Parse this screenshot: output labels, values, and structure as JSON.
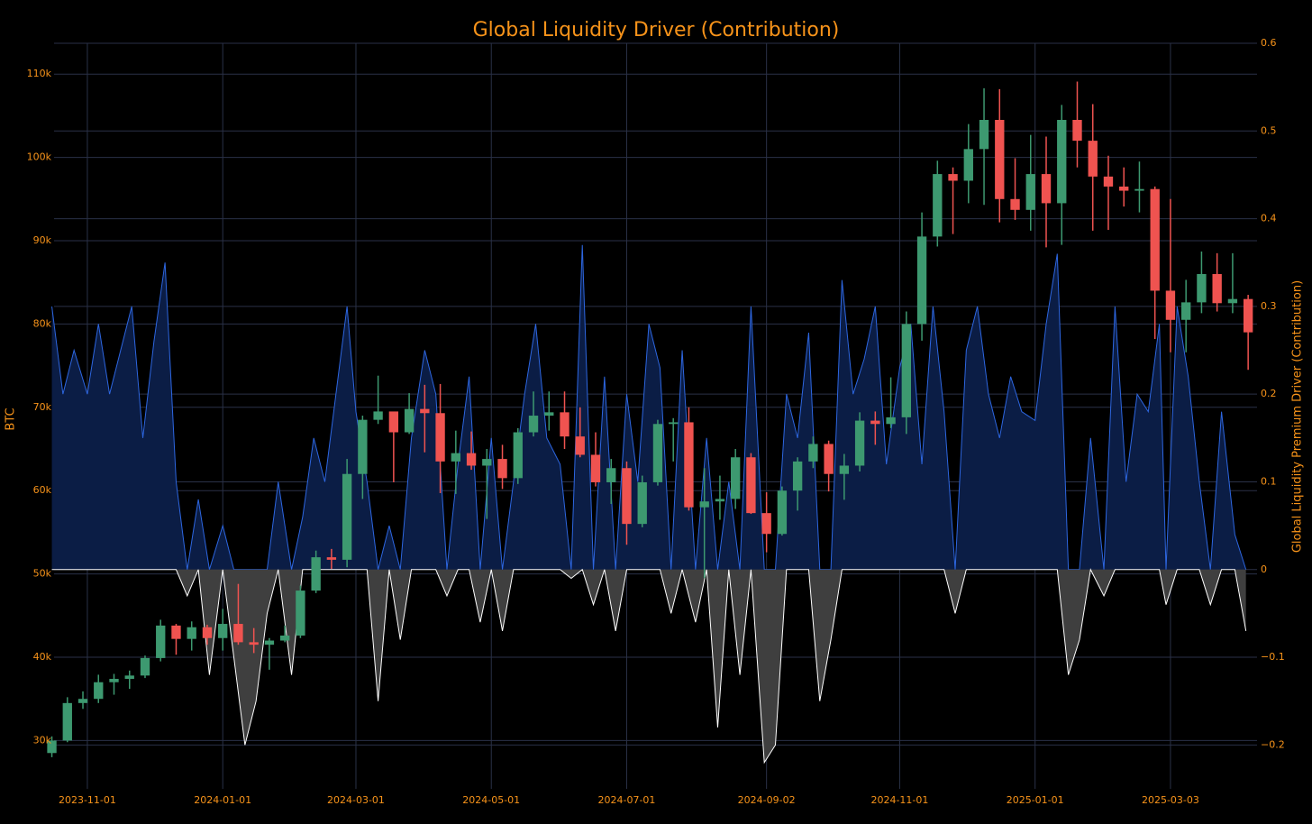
{
  "chart_data": {
    "type": "candlestick",
    "title": "Global Liquidity Driver (Contribution)",
    "y_label": "BTC",
    "y2_label": "Global Liquidity Premium Driver (Contribution)",
    "increasing_color": "#3d9970",
    "decreasing_color": "#ef5350",
    "grid": true,
    "xlim": [
      "2023-10-17",
      "2025-04-11"
    ],
    "xticks": [
      "2023-11-01",
      "2024-01-01",
      "2024-03-01",
      "2024-05-01",
      "2024-07-01",
      "2024-09-02",
      "2024-11-01",
      "2025-01-01",
      "2025-03-03"
    ],
    "ylim": [
      24200,
      113700
    ],
    "yticks": [
      {
        "value": 30000,
        "label": "30k"
      },
      {
        "value": 40000,
        "label": "40k"
      },
      {
        "value": 50000,
        "label": "50k"
      },
      {
        "value": 60000,
        "label": "60k"
      },
      {
        "value": 70000,
        "label": "70k"
      },
      {
        "value": 80000,
        "label": "80k"
      },
      {
        "value": 90000,
        "label": "90k"
      },
      {
        "value": 100000,
        "label": "100k"
      },
      {
        "value": 110000,
        "label": "110k"
      }
    ],
    "y2lim": [
      -0.25,
      0.6
    ],
    "y2ticks": [
      {
        "value": -0.2,
        "label": "−0.2"
      },
      {
        "value": -0.1,
        "label": "−0.1"
      },
      0,
      0.1,
      0.2,
      0.3,
      0.4,
      0.5,
      0.6
    ],
    "x": [
      "2023-10-16",
      "2023-10-23",
      "2023-10-30",
      "2023-11-06",
      "2023-11-13",
      "2023-11-20",
      "2023-11-27",
      "2023-12-04",
      "2023-12-11",
      "2023-12-18",
      "2023-12-25",
      "2024-01-01",
      "2024-01-08",
      "2024-01-15",
      "2024-01-22",
      "2024-01-29",
      "2024-02-05",
      "2024-02-12",
      "2024-02-19",
      "2024-02-26",
      "2024-03-04",
      "2024-03-11",
      "2024-03-18",
      "2024-03-25",
      "2024-04-01",
      "2024-04-08",
      "2024-04-15",
      "2024-04-22",
      "2024-04-29",
      "2024-05-06",
      "2024-05-13",
      "2024-05-20",
      "2024-05-27",
      "2024-06-03",
      "2024-06-10",
      "2024-06-17",
      "2024-06-24",
      "2024-07-01",
      "2024-07-08",
      "2024-07-15",
      "2024-07-22",
      "2024-07-29",
      "2024-08-05",
      "2024-08-12",
      "2024-08-19",
      "2024-08-26",
      "2024-09-02",
      "2024-09-09",
      "2024-09-16",
      "2024-09-23",
      "2024-09-30",
      "2024-10-07",
      "2024-10-14",
      "2024-10-21",
      "2024-10-28",
      "2024-11-04",
      "2024-11-11",
      "2024-11-18",
      "2024-11-25",
      "2024-12-02",
      "2024-12-09",
      "2024-12-16",
      "2024-12-23",
      "2024-12-30",
      "2025-01-06",
      "2025-01-13",
      "2025-01-20",
      "2025-01-27",
      "2025-02-03",
      "2025-02-10",
      "2025-02-17",
      "2025-02-24",
      "2025-03-03",
      "2025-03-10",
      "2025-03-17",
      "2025-03-24",
      "2025-03-31",
      "2025-04-07"
    ],
    "open": [
      28500,
      30000,
      34500,
      35000,
      37000,
      37400,
      37800,
      39900,
      43800,
      42200,
      43600,
      42300,
      44000,
      41800,
      41500,
      42000,
      42600,
      48000,
      52000,
      51700,
      62000,
      68500,
      69500,
      67000,
      69800,
      69300,
      63500,
      64500,
      63000,
      63800,
      61500,
      67000,
      69000,
      69400,
      66500,
      64300,
      61000,
      62700,
      56000,
      61000,
      68000,
      68200,
      58000,
      58700,
      59000,
      64000,
      57300,
      54800,
      60000,
      63500,
      65600,
      62000,
      63000,
      68400,
      68000,
      68800,
      80000,
      90500,
      98000,
      97200,
      101000,
      104500,
      95000,
      93700,
      98000,
      94500,
      104500,
      102000,
      97700,
      96500,
      96000,
      96200,
      84000,
      80500,
      82600,
      86000,
      82500,
      83000
    ],
    "high": [
      30500,
      35200,
      35900,
      37900,
      38000,
      38400,
      40200,
      44500,
      44000,
      44300,
      43900,
      45800,
      48800,
      43500,
      42300,
      43800,
      48600,
      52800,
      53000,
      63800,
      69000,
      73800,
      68900,
      71700,
      72700,
      72800,
      67200,
      67100,
      65000,
      65500,
      67500,
      71900,
      71900,
      71900,
      70000,
      67000,
      63800,
      63500,
      61800,
      68500,
      68700,
      70000,
      62700,
      61800,
      65000,
      64500,
      59800,
      60500,
      64000,
      66500,
      66000,
      64400,
      69400,
      69500,
      73600,
      81500,
      93400,
      99600,
      98800,
      104000,
      108300,
      108200,
      99900,
      102700,
      102500,
      106300,
      109100,
      106400,
      100200,
      98800,
      99500,
      96500,
      95000,
      85300,
      88700,
      88500,
      88500,
      83500
    ],
    "low": [
      28000,
      29800,
      33800,
      34500,
      35500,
      36200,
      37500,
      39500,
      40300,
      40800,
      41500,
      40800,
      41500,
      40500,
      38500,
      41800,
      42300,
      47700,
      50600,
      50800,
      59000,
      68000,
      61000,
      66800,
      64600,
      59700,
      59600,
      62500,
      56600,
      60200,
      60800,
      66500,
      67200,
      65000,
      64000,
      60500,
      58400,
      53500,
      55600,
      60600,
      63500,
      57600,
      49500,
      56500,
      57800,
      57200,
      52600,
      54600,
      57600,
      62700,
      59900,
      58900,
      62300,
      65500,
      67500,
      66800,
      78000,
      89300,
      90800,
      94500,
      94300,
      92200,
      92500,
      91200,
      89200,
      89500,
      98800,
      91200,
      91300,
      94100,
      93400,
      78200,
      76600,
      76600,
      81300,
      81500,
      81300,
      74500
    ],
    "close": [
      30000,
      34500,
      35000,
      37000,
      37400,
      37800,
      39900,
      43800,
      42200,
      43600,
      42300,
      44000,
      41800,
      41500,
      42000,
      42600,
      48000,
      52000,
      51700,
      62000,
      68500,
      69500,
      67000,
      69800,
      69300,
      63500,
      64500,
      63000,
      63800,
      61500,
      67000,
      69000,
      69400,
      66500,
      64300,
      61000,
      62700,
      56000,
      61000,
      68000,
      68200,
      58000,
      58700,
      59000,
      64000,
      57300,
      54800,
      60000,
      63500,
      65600,
      62000,
      63000,
      68400,
      68000,
      68800,
      80000,
      90500,
      98000,
      97200,
      101000,
      104500,
      95000,
      93700,
      98000,
      94500,
      104500,
      102000,
      97700,
      96500,
      96000,
      96200,
      84000,
      80500,
      82600,
      86000,
      82500,
      83000,
      79000
    ],
    "contribution": {
      "type": "area",
      "x": [
        "2023-10-16",
        "2023-10-21",
        "2023-10-26",
        "2023-11-01",
        "2023-11-06",
        "2023-11-11",
        "2023-11-16",
        "2023-11-21",
        "2023-11-26",
        "2023-12-01",
        "2023-12-06",
        "2023-12-11",
        "2023-12-16",
        "2023-12-21",
        "2023-12-26",
        "2024-01-01",
        "2024-01-06",
        "2024-01-11",
        "2024-01-16",
        "2024-01-21",
        "2024-01-26",
        "2024-02-01",
        "2024-02-06",
        "2024-02-11",
        "2024-02-16",
        "2024-02-21",
        "2024-02-26",
        "2024-03-01",
        "2024-03-06",
        "2024-03-11",
        "2024-03-16",
        "2024-03-21",
        "2024-03-26",
        "2024-04-01",
        "2024-04-06",
        "2024-04-11",
        "2024-04-16",
        "2024-04-21",
        "2024-04-26",
        "2024-05-01",
        "2024-05-06",
        "2024-05-11",
        "2024-05-16",
        "2024-05-21",
        "2024-05-26",
        "2024-06-01",
        "2024-06-06",
        "2024-06-11",
        "2024-06-16",
        "2024-06-21",
        "2024-06-26",
        "2024-07-01",
        "2024-07-06",
        "2024-07-11",
        "2024-07-16",
        "2024-07-21",
        "2024-07-26",
        "2024-08-01",
        "2024-08-06",
        "2024-08-11",
        "2024-08-16",
        "2024-08-21",
        "2024-08-26",
        "2024-09-01",
        "2024-09-06",
        "2024-09-11",
        "2024-09-16",
        "2024-09-21",
        "2024-09-26",
        "2024-10-01",
        "2024-10-06",
        "2024-10-11",
        "2024-10-16",
        "2024-10-21",
        "2024-10-26",
        "2024-11-01",
        "2024-11-06",
        "2024-11-11",
        "2024-11-16",
        "2024-11-21",
        "2024-11-26",
        "2024-12-01",
        "2024-12-06",
        "2024-12-11",
        "2024-12-16",
        "2024-12-21",
        "2024-12-26",
        "2025-01-01",
        "2025-01-06",
        "2025-01-11",
        "2025-01-16",
        "2025-01-21",
        "2025-01-26",
        "2025-02-01",
        "2025-02-06",
        "2025-02-11",
        "2025-02-16",
        "2025-02-21",
        "2025-02-26",
        "2025-03-01",
        "2025-03-06",
        "2025-03-11",
        "2025-03-16",
        "2025-03-21",
        "2025-03-26",
        "2025-04-01",
        "2025-04-06"
      ],
      "series": [
        {
          "axis": "y2",
          "color": "#2d66e0",
          "fill": "#0b1d45",
          "values": [
            0.3,
            0.2,
            0.25,
            0.2,
            0.28,
            0.2,
            0.25,
            0.3,
            0.15,
            0.26,
            0.35,
            0.1,
            0,
            0.08,
            0,
            0.05,
            0,
            0,
            0,
            0,
            0.1,
            0,
            0.06,
            0.15,
            0.1,
            0.2,
            0.3,
            0.18,
            0.1,
            0,
            0.05,
            0,
            0.15,
            0.25,
            0.2,
            0,
            0.12,
            0.22,
            0,
            0.15,
            0,
            0.1,
            0.2,
            0.28,
            0.15,
            0.12,
            0,
            0.37,
            0,
            0.22,
            0,
            0.2,
            0.1,
            0.28,
            0.23,
            0,
            0.25,
            0,
            0.15,
            0,
            0.1,
            0,
            0.3,
            0,
            0,
            0.2,
            0.15,
            0.27,
            0,
            0,
            0.33,
            0.2,
            0.24,
            0.3,
            0.12,
            0.23,
            0.28,
            0.12,
            0.3,
            0.18,
            0,
            0.25,
            0.3,
            0.2,
            0.15,
            0.22,
            0.18,
            0.17,
            0.28,
            0.36,
            0,
            0,
            0.15,
            0,
            0.3,
            0.1,
            0.2,
            0.18,
            0.28,
            0,
            0.3,
            0.22,
            0.1,
            0,
            0.18,
            0.04,
            0
          ]
        },
        {
          "axis": "y2",
          "color": "#ffffff",
          "fill": "#3f3f3f",
          "values": [
            0,
            0,
            0,
            0,
            0,
            0,
            0,
            0,
            0,
            0,
            0,
            0,
            -0.03,
            0,
            -0.12,
            0,
            -0.1,
            -0.2,
            -0.15,
            -0.05,
            0,
            -0.12,
            0,
            0,
            0,
            0,
            0,
            0,
            0,
            -0.15,
            0,
            -0.08,
            0,
            0,
            0,
            -0.03,
            0,
            0,
            -0.06,
            0,
            -0.07,
            0,
            0,
            0,
            0,
            0,
            -0.01,
            0,
            -0.04,
            0,
            -0.07,
            0,
            0,
            0,
            0,
            -0.05,
            0,
            -0.06,
            0,
            -0.18,
            0,
            -0.12,
            0,
            -0.22,
            -0.2,
            0,
            0,
            0,
            -0.15,
            -0.08,
            0,
            0,
            0,
            0,
            0,
            0,
            0,
            0,
            0,
            0,
            -0.05,
            0,
            0,
            0,
            0,
            0,
            0,
            0,
            0,
            0,
            -0.12,
            -0.08,
            0,
            -0.03,
            0,
            0,
            0,
            0,
            0,
            -0.04,
            0,
            0,
            0,
            -0.04,
            0,
            0,
            -0.07
          ]
        }
      ]
    }
  }
}
